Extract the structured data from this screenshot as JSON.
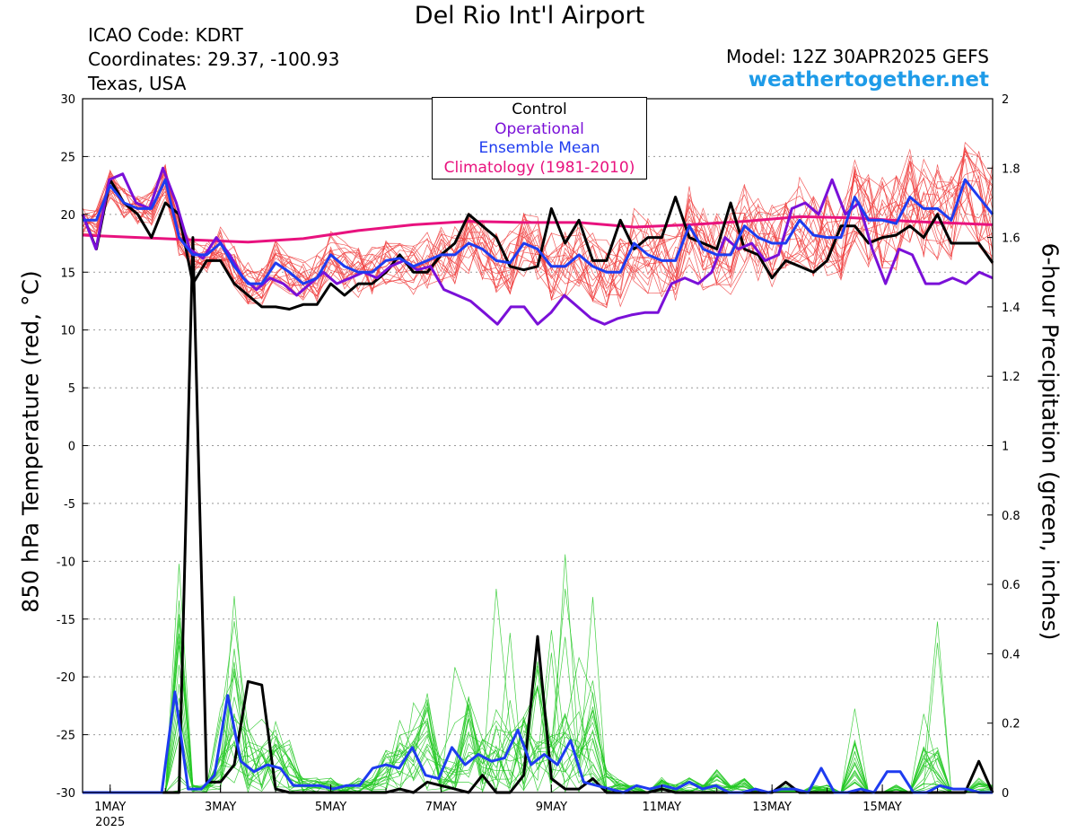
{
  "header": {
    "title": "Del Rio Int'l Airport",
    "icao": "ICAO Code: KDRT",
    "coordinates": "Coordinates: 29.37, -100.93",
    "region": "Texas, USA",
    "model": "Model: 12Z 30APR2025 GEFS",
    "site": "weathertogether.net"
  },
  "colors": {
    "control": "#000000",
    "operational": "#7a10d8",
    "ensemble_mean": "#1e3cf0",
    "climatology": "#e8127e",
    "members_temp": "#f04040",
    "members_precip": "#22c822",
    "site": "#1e9be8"
  },
  "chart_data": {
    "type": "line",
    "title": "Del Rio Int'l Airport",
    "ylabel_left": "850 hPa Temperature (red, °C)",
    "ylabel_right": "6-hour Precipitation (green, inches)",
    "ylim_left": [
      -30,
      30
    ],
    "ylim_right": [
      0,
      2
    ],
    "yticks_left": [
      -30,
      -25,
      -20,
      -15,
      -10,
      -5,
      0,
      5,
      10,
      15,
      20,
      25,
      30
    ],
    "yticks_right": [
      0,
      0.2,
      0.4,
      0.6,
      0.8,
      1,
      1.2,
      1.4,
      1.6,
      1.8,
      2
    ],
    "x_unit": "day since 30APR2025 12Z",
    "xlim": [
      0,
      16.5
    ],
    "xticks": [
      {
        "x": 0.5,
        "label": "1MAY",
        "sub": "2025"
      },
      {
        "x": 2.5,
        "label": "3MAY",
        "sub": ""
      },
      {
        "x": 4.5,
        "label": "5MAY",
        "sub": ""
      },
      {
        "x": 6.5,
        "label": "7MAY",
        "sub": ""
      },
      {
        "x": 8.5,
        "label": "9MAY",
        "sub": ""
      },
      {
        "x": 10.5,
        "label": "11MAY",
        "sub": ""
      },
      {
        "x": 12.5,
        "label": "13MAY",
        "sub": ""
      },
      {
        "x": 14.5,
        "label": "15MAY",
        "sub": ""
      }
    ],
    "grid": true,
    "legend": {
      "position": "top-center",
      "entries": [
        "Control",
        "Operational",
        "Ensemble Mean",
        "Climatology (1981-2010)"
      ]
    },
    "series": [
      {
        "name": "Control",
        "axis": "left",
        "values": [
          20,
          17,
          23,
          21,
          20,
          18,
          21,
          20,
          14,
          16,
          16,
          14,
          13,
          12,
          12,
          11.8,
          12.2,
          12.2,
          14,
          13,
          14,
          14,
          15,
          16.5,
          15,
          15,
          16.5,
          17.5,
          20,
          19,
          18,
          15.5,
          15.2,
          15.5,
          20.5,
          17.5,
          19.5,
          16,
          16,
          19.5,
          17,
          18,
          18,
          21.5,
          18,
          17.5,
          17,
          21,
          17,
          16.5,
          14.5,
          16,
          15.5,
          15,
          16,
          19,
          19,
          17.5,
          18,
          18.2,
          19,
          18,
          20,
          17.5,
          17.5,
          17.5,
          15.8
        ]
      },
      {
        "name": "Operational",
        "axis": "left",
        "values": [
          20,
          17,
          23,
          23.5,
          21,
          20.5,
          24,
          21,
          17,
          16.2,
          18,
          16.5,
          14.5,
          13.5,
          14.5,
          14,
          13,
          14,
          15,
          14,
          14.5,
          15,
          14.5,
          15.5,
          16,
          15.2,
          15.5,
          13.5,
          13,
          12.5,
          11.5,
          10.5,
          12,
          12,
          10.5,
          11.5,
          13,
          12,
          11,
          10.5,
          11,
          11.3,
          11.5,
          11.5,
          14,
          14.5,
          14,
          15,
          18,
          17,
          17.5,
          16,
          16.5,
          20.5,
          21,
          20,
          23,
          20,
          21,
          17,
          14,
          17,
          16.5,
          14,
          14,
          14.5,
          14,
          15,
          14.5
        ]
      },
      {
        "name": "Ensemble Mean",
        "axis": "left",
        "values": [
          19.5,
          19.5,
          22.5,
          21,
          20.5,
          20.5,
          23,
          18,
          16.5,
          16.5,
          17.5,
          15.5,
          14,
          14,
          15.8,
          15,
          14,
          14.5,
          16.5,
          15.5,
          15,
          15,
          16,
          16.2,
          15.5,
          16,
          16.5,
          16.5,
          17.5,
          17,
          16,
          15.8,
          17.5,
          17,
          15.5,
          15.5,
          16.5,
          15.5,
          15,
          15,
          17.5,
          16.5,
          16,
          16,
          19,
          17,
          16.5,
          16.5,
          19,
          18,
          17.5,
          17.5,
          19.5,
          18.2,
          18,
          18,
          21.5,
          19.5,
          19.5,
          19.2,
          21.5,
          20.5,
          20.5,
          19.5,
          23,
          21.5,
          20
        ]
      },
      {
        "name": "Climatology (1981-2010)",
        "axis": "left",
        "x": [
          0,
          1,
          2,
          3,
          4,
          5,
          6,
          7,
          8,
          9,
          10,
          11,
          12,
          13,
          14,
          15,
          16.5
        ],
        "values": [
          18.2,
          18.0,
          17.8,
          17.6,
          17.9,
          18.6,
          19.1,
          19.4,
          19.3,
          19.3,
          18.9,
          19.1,
          19.4,
          19.8,
          19.7,
          19.4,
          19.1
        ]
      },
      {
        "name": "Control",
        "axis": "right",
        "kind": "precip",
        "values": [
          0,
          0,
          0,
          0,
          0,
          0,
          0,
          0,
          1.6,
          0.03,
          0.03,
          0.08,
          0.32,
          0.31,
          0.01,
          0,
          0,
          0,
          0,
          0,
          0,
          0,
          0,
          0.01,
          0,
          0.03,
          0.02,
          0.01,
          0,
          0.05,
          0,
          0,
          0.05,
          0.45,
          0.04,
          0.01,
          0.01,
          0.04,
          0,
          0,
          0,
          0,
          0.01,
          0,
          0,
          0,
          0,
          0,
          0,
          0,
          0,
          0.03,
          0,
          0,
          0,
          0,
          0,
          0,
          0,
          0,
          0,
          0,
          0,
          0,
          0,
          0.09,
          0
        ]
      },
      {
        "name": "Ensemble Mean",
        "axis": "right",
        "kind": "precip",
        "values": [
          0,
          0,
          0,
          0,
          0,
          0,
          0,
          0.29,
          0.01,
          0.01,
          0.05,
          0.28,
          0.09,
          0.06,
          0.08,
          0.07,
          0.02,
          0.02,
          0.02,
          0.01,
          0.02,
          0.02,
          0.07,
          0.08,
          0.07,
          0.13,
          0.05,
          0.04,
          0.13,
          0.08,
          0.11,
          0.09,
          0.1,
          0.18,
          0.08,
          0.11,
          0.08,
          0.15,
          0.03,
          0.02,
          0.01,
          0,
          0.02,
          0.01,
          0.02,
          0.01,
          0.03,
          0.01,
          0.02,
          0,
          0,
          0.01,
          0,
          0.01,
          0.01,
          0,
          0.07,
          0,
          0,
          0.01,
          0,
          0.06,
          0.06,
          0,
          0,
          0.02,
          0.01,
          0.01,
          0,
          0
        ]
      }
    ]
  }
}
